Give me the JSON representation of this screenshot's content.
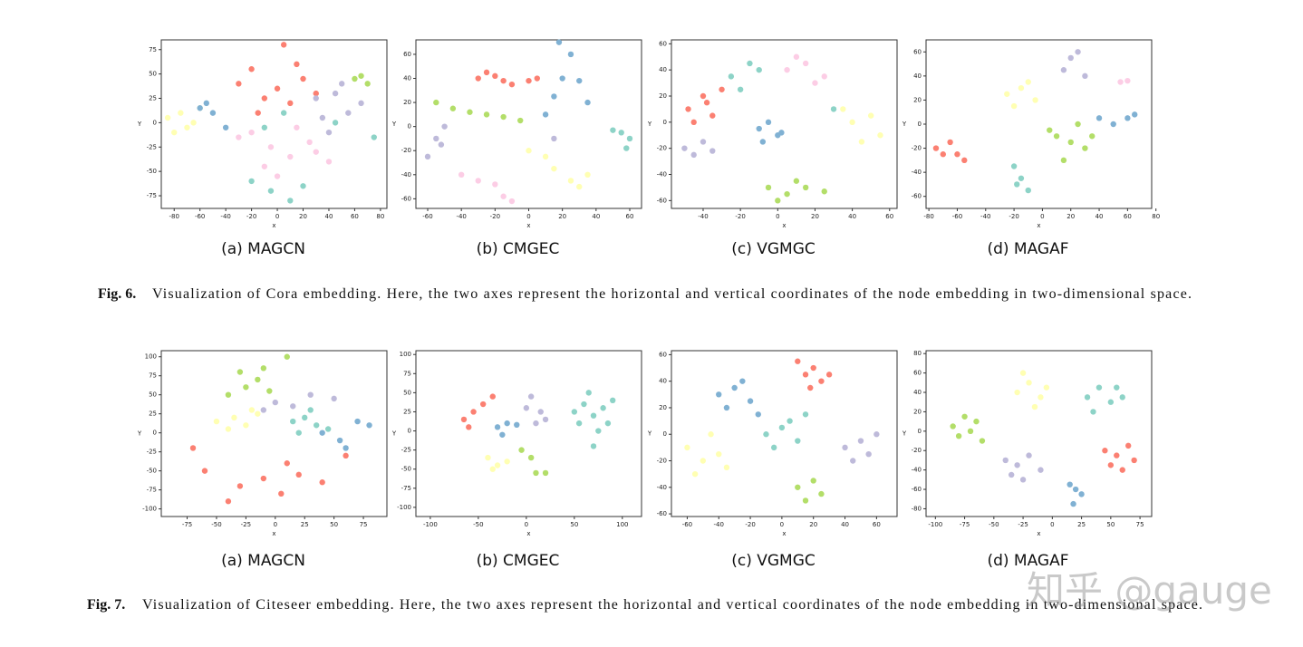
{
  "figures": [
    {
      "label": "Fig. 6.",
      "caption": "Visualization of Cora embedding. Here, the two axes represent the horizontal and vertical coordinates of the node embedding in two-dimensional space."
    },
    {
      "label": "Fig. 7.",
      "caption": "Visualization of Citeseer embedding. Here, the two axes represent the horizontal and vertical coordinates of the node embedding in two-dimensional space."
    }
  ],
  "watermark": "知乎 @gauge",
  "chart_data": [
    {
      "type": "scatter",
      "subcaption": "(a) MAGCN",
      "xlabel": "x",
      "ylabel": "Y",
      "xlim": [
        -90,
        85
      ],
      "xticks": [
        -80,
        -60,
        -40,
        -20,
        0,
        20,
        40,
        60,
        80
      ],
      "ylim": [
        -88,
        85
      ],
      "yticks": [
        -75,
        -50,
        -25,
        0,
        25,
        50,
        75
      ],
      "series": [
        {
          "color": "#fb8072",
          "x": [
            -30,
            -10,
            0,
            10,
            20,
            -20,
            5,
            30,
            -15,
            15
          ],
          "y": [
            40,
            25,
            35,
            20,
            45,
            55,
            80,
            30,
            10,
            60
          ]
        },
        {
          "color": "#fccde5",
          "x": [
            -20,
            -5,
            10,
            25,
            40,
            0,
            -30,
            15,
            30,
            -10
          ],
          "y": [
            -10,
            -25,
            -35,
            -20,
            -40,
            -55,
            -15,
            -5,
            -30,
            -45
          ]
        },
        {
          "color": "#bebada",
          "x": [
            30,
            45,
            55,
            40,
            65,
            50,
            35
          ],
          "y": [
            25,
            30,
            10,
            -10,
            20,
            40,
            5
          ]
        },
        {
          "color": "#ffffb3",
          "x": [
            -85,
            -75,
            -70,
            -65,
            -80,
            -60
          ],
          "y": [
            5,
            10,
            -5,
            0,
            -10,
            15
          ]
        },
        {
          "color": "#8dd3c7",
          "x": [
            -20,
            -5,
            10,
            20,
            -10,
            5,
            45,
            75
          ],
          "y": [
            -60,
            -70,
            -80,
            -65,
            -5,
            10,
            0,
            -15
          ]
        },
        {
          "color": "#80b1d3",
          "x": [
            -60,
            -50,
            -55,
            -40
          ],
          "y": [
            15,
            10,
            20,
            -5
          ]
        },
        {
          "color": "#b3de69",
          "x": [
            60,
            65,
            70
          ],
          "y": [
            45,
            48,
            40
          ]
        }
      ]
    },
    {
      "type": "scatter",
      "subcaption": "(b) CMGEC",
      "xlabel": "x",
      "ylabel": "Y",
      "xlim": [
        -67,
        67
      ],
      "xticks": [
        -60,
        -40,
        -20,
        0,
        20,
        40,
        60
      ],
      "ylim": [
        -68,
        72
      ],
      "yticks": [
        -60,
        -40,
        -20,
        0,
        20,
        40,
        60
      ],
      "series": [
        {
          "color": "#fb8072",
          "x": [
            -30,
            -25,
            -20,
            -15,
            -10,
            0,
            5
          ],
          "y": [
            40,
            45,
            42,
            38,
            35,
            38,
            40
          ]
        },
        {
          "color": "#80b1d3",
          "x": [
            20,
            25,
            30,
            10,
            15,
            35,
            18
          ],
          "y": [
            40,
            60,
            38,
            10,
            25,
            20,
            70
          ]
        },
        {
          "color": "#b3de69",
          "x": [
            -55,
            -45,
            -35,
            -25,
            -15,
            -5
          ],
          "y": [
            20,
            15,
            12,
            10,
            8,
            5
          ]
        },
        {
          "color": "#8dd3c7",
          "x": [
            50,
            55,
            60,
            58
          ],
          "y": [
            -3,
            -5,
            -10,
            -18
          ]
        },
        {
          "color": "#bebada",
          "x": [
            -60,
            -55,
            -50,
            -52,
            15
          ],
          "y": [
            -25,
            -10,
            0,
            -15,
            -10
          ]
        },
        {
          "color": "#fccde5",
          "x": [
            -40,
            -30,
            -20,
            -15,
            -10
          ],
          "y": [
            -40,
            -45,
            -48,
            -58,
            -62
          ]
        },
        {
          "color": "#ffffb3",
          "x": [
            0,
            10,
            15,
            25,
            30,
            35
          ],
          "y": [
            -20,
            -25,
            -35,
            -45,
            -50,
            -40
          ]
        }
      ]
    },
    {
      "type": "scatter",
      "subcaption": "(c) VGMGC",
      "xlabel": "x",
      "ylabel": "Y",
      "xlim": [
        -57,
        64
      ],
      "xticks": [
        -40,
        -20,
        0,
        20,
        40,
        60
      ],
      "ylim": [
        -66,
        63
      ],
      "yticks": [
        -60,
        -40,
        -20,
        0,
        20,
        40,
        60
      ],
      "series": [
        {
          "color": "#fb8072",
          "x": [
            -48,
            -40,
            -35,
            -45,
            -38,
            -30
          ],
          "y": [
            10,
            20,
            5,
            0,
            15,
            25
          ]
        },
        {
          "color": "#8dd3c7",
          "x": [
            -25,
            -15,
            -10,
            -20,
            30
          ],
          "y": [
            35,
            45,
            40,
            25,
            10
          ]
        },
        {
          "color": "#bebada",
          "x": [
            -50,
            -45,
            -40,
            -35
          ],
          "y": [
            -20,
            -25,
            -15,
            -22
          ]
        },
        {
          "color": "#80b1d3",
          "x": [
            -10,
            -5,
            0,
            -8,
            2
          ],
          "y": [
            -5,
            0,
            -10,
            -15,
            -8
          ]
        },
        {
          "color": "#fccde5",
          "x": [
            5,
            15,
            25,
            20,
            10
          ],
          "y": [
            40,
            45,
            35,
            30,
            50
          ]
        },
        {
          "color": "#ffffb3",
          "x": [
            40,
            50,
            55,
            45,
            35
          ],
          "y": [
            0,
            5,
            -10,
            -15,
            10
          ]
        },
        {
          "color": "#b3de69",
          "x": [
            -5,
            5,
            15,
            0,
            10,
            25
          ],
          "y": [
            -50,
            -55,
            -50,
            -60,
            -45,
            -53
          ]
        }
      ]
    },
    {
      "type": "scatter",
      "subcaption": "(d) MAGAF",
      "xlabel": "x",
      "ylabel": "Y",
      "xlim": [
        -82,
        77
      ],
      "xticks": [
        -80,
        -60,
        -40,
        -20,
        0,
        20,
        40,
        60,
        80
      ],
      "ylim": [
        -70,
        70
      ],
      "yticks": [
        -60,
        -40,
        -20,
        0,
        20,
        40,
        60
      ],
      "series": [
        {
          "color": "#fb8072",
          "x": [
            -75,
            -65,
            -60,
            -70,
            -55
          ],
          "y": [
            -20,
            -15,
            -25,
            -25,
            -30
          ]
        },
        {
          "color": "#8dd3c7",
          "x": [
            -20,
            -15,
            -10,
            -18
          ],
          "y": [
            -35,
            -45,
            -55,
            -50
          ]
        },
        {
          "color": "#b3de69",
          "x": [
            10,
            20,
            30,
            15,
            25,
            5,
            35
          ],
          "y": [
            -10,
            -15,
            -20,
            -30,
            0,
            -5,
            -10
          ]
        },
        {
          "color": "#ffffb3",
          "x": [
            -25,
            -15,
            -5,
            -20,
            -10
          ],
          "y": [
            25,
            30,
            20,
            15,
            35
          ]
        },
        {
          "color": "#bebada",
          "x": [
            15,
            20,
            25,
            30
          ],
          "y": [
            45,
            55,
            60,
            40
          ]
        },
        {
          "color": "#80b1d3",
          "x": [
            40,
            50,
            60,
            65
          ],
          "y": [
            5,
            0,
            5,
            8
          ]
        },
        {
          "color": "#fccde5",
          "x": [
            55,
            60
          ],
          "y": [
            35,
            36
          ]
        }
      ]
    },
    {
      "type": "scatter",
      "subcaption": "(a) MAGCN",
      "xlabel": "x",
      "ylabel": "Y",
      "xlim": [
        -97,
        95
      ],
      "xticks": [
        -75,
        -50,
        -25,
        0,
        25,
        50,
        75
      ],
      "ylim": [
        -110,
        108
      ],
      "yticks": [
        -100,
        -75,
        -50,
        -25,
        0,
        25,
        50,
        75,
        100
      ],
      "series": [
        {
          "color": "#b3de69",
          "x": [
            -40,
            -25,
            -15,
            -5,
            -30,
            -10,
            10
          ],
          "y": [
            50,
            60,
            70,
            55,
            80,
            85,
            100
          ]
        },
        {
          "color": "#ffffb3",
          "x": [
            -50,
            -35,
            -25,
            -15,
            -40,
            -20
          ],
          "y": [
            15,
            20,
            10,
            25,
            5,
            30
          ]
        },
        {
          "color": "#8dd3c7",
          "x": [
            15,
            25,
            35,
            45,
            30,
            20
          ],
          "y": [
            15,
            20,
            10,
            5,
            30,
            0
          ]
        },
        {
          "color": "#fb8072",
          "x": [
            -60,
            -30,
            -10,
            5,
            20,
            40,
            -40,
            10,
            60,
            -70
          ],
          "y": [
            -50,
            -70,
            -60,
            -80,
            -55,
            -65,
            -90,
            -40,
            -30,
            -20
          ]
        },
        {
          "color": "#80b1d3",
          "x": [
            40,
            55,
            70,
            60,
            80
          ],
          "y": [
            0,
            -10,
            15,
            -20,
            10
          ]
        },
        {
          "color": "#bebada",
          "x": [
            0,
            15,
            30,
            -10,
            50
          ],
          "y": [
            40,
            35,
            50,
            30,
            45
          ]
        }
      ]
    },
    {
      "type": "scatter",
      "subcaption": "(b) CMGEC",
      "xlabel": "x",
      "ylabel": "Y",
      "xlim": [
        -115,
        120
      ],
      "xticks": [
        -100,
        -50,
        0,
        50,
        100
      ],
      "ylim": [
        -112,
        105
      ],
      "yticks": [
        -100,
        -75,
        -50,
        -25,
        0,
        25,
        50,
        75,
        100
      ],
      "series": [
        {
          "color": "#8dd3c7",
          "x": [
            70,
            60,
            80,
            55,
            85,
            65,
            75,
            50,
            90,
            70
          ],
          "y": [
            20,
            35,
            30,
            10,
            10,
            50,
            0,
            25,
            40,
            -20
          ]
        },
        {
          "color": "#fb8072",
          "x": [
            -65,
            -55,
            -45,
            -35,
            -60
          ],
          "y": [
            15,
            25,
            35,
            45,
            5
          ]
        },
        {
          "color": "#80b1d3",
          "x": [
            -30,
            -20,
            -10,
            -25
          ],
          "y": [
            5,
            10,
            8,
            -5
          ]
        },
        {
          "color": "#bebada",
          "x": [
            0,
            5,
            15,
            10,
            20
          ],
          "y": [
            30,
            45,
            25,
            10,
            15
          ]
        },
        {
          "color": "#ffffb3",
          "x": [
            -40,
            -30,
            -20,
            -35
          ],
          "y": [
            -35,
            -45,
            -40,
            -50
          ]
        },
        {
          "color": "#b3de69",
          "x": [
            -5,
            5,
            10,
            20
          ],
          "y": [
            -25,
            -35,
            -55,
            -55
          ]
        }
      ]
    },
    {
      "type": "scatter",
      "subcaption": "(c) VGMGC",
      "xlabel": "x",
      "ylabel": "Y",
      "xlim": [
        -70,
        73
      ],
      "xticks": [
        -60,
        -40,
        -20,
        0,
        20,
        40,
        60
      ],
      "ylim": [
        -62,
        63
      ],
      "yticks": [
        -60,
        -40,
        -20,
        0,
        20,
        40,
        60
      ],
      "series": [
        {
          "color": "#fb8072",
          "x": [
            15,
            20,
            25,
            30,
            18,
            10
          ],
          "y": [
            45,
            50,
            40,
            45,
            35,
            55
          ]
        },
        {
          "color": "#80b1d3",
          "x": [
            -40,
            -30,
            -20,
            -25,
            -35,
            -15
          ],
          "y": [
            30,
            35,
            25,
            40,
            20,
            15
          ]
        },
        {
          "color": "#ffffb3",
          "x": [
            -60,
            -50,
            -40,
            -55,
            -45,
            -35
          ],
          "y": [
            -10,
            -20,
            -15,
            -30,
            0,
            -25
          ]
        },
        {
          "color": "#8dd3c7",
          "x": [
            -10,
            0,
            10,
            5,
            -5,
            15
          ],
          "y": [
            0,
            5,
            -5,
            10,
            -10,
            15
          ]
        },
        {
          "color": "#bebada",
          "x": [
            40,
            50,
            60,
            45,
            55
          ],
          "y": [
            -10,
            -5,
            0,
            -20,
            -15
          ]
        },
        {
          "color": "#b3de69",
          "x": [
            10,
            20,
            25,
            15
          ],
          "y": [
            -40,
            -35,
            -45,
            -50
          ]
        }
      ]
    },
    {
      "type": "scatter",
      "subcaption": "(d) MAGAF",
      "xlabel": "x",
      "ylabel": "Y",
      "xlim": [
        -108,
        85
      ],
      "xticks": [
        -100,
        -75,
        -50,
        -25,
        0,
        25,
        50,
        75
      ],
      "ylim": [
        -88,
        83
      ],
      "yticks": [
        -80,
        -60,
        -40,
        -20,
        0,
        20,
        40,
        60,
        80
      ],
      "series": [
        {
          "color": "#b3de69",
          "x": [
            -85,
            -75,
            -65,
            -80,
            -70,
            -60
          ],
          "y": [
            5,
            15,
            10,
            -5,
            0,
            -10
          ]
        },
        {
          "color": "#ffffb3",
          "x": [
            -30,
            -20,
            -10,
            -25,
            -15,
            -5
          ],
          "y": [
            40,
            50,
            35,
            60,
            25,
            45
          ]
        },
        {
          "color": "#8dd3c7",
          "x": [
            30,
            40,
            50,
            60,
            35,
            55
          ],
          "y": [
            35,
            45,
            30,
            35,
            20,
            45
          ]
        },
        {
          "color": "#fb8072",
          "x": [
            45,
            55,
            65,
            70,
            50,
            60
          ],
          "y": [
            -20,
            -25,
            -15,
            -30,
            -35,
            -40
          ]
        },
        {
          "color": "#bebada",
          "x": [
            -40,
            -30,
            -20,
            -10,
            -25,
            -35
          ],
          "y": [
            -30,
            -35,
            -25,
            -40,
            -50,
            -45
          ]
        },
        {
          "color": "#80b1d3",
          "x": [
            15,
            20,
            25,
            18
          ],
          "y": [
            -55,
            -60,
            -65,
            -75
          ]
        }
      ]
    }
  ]
}
